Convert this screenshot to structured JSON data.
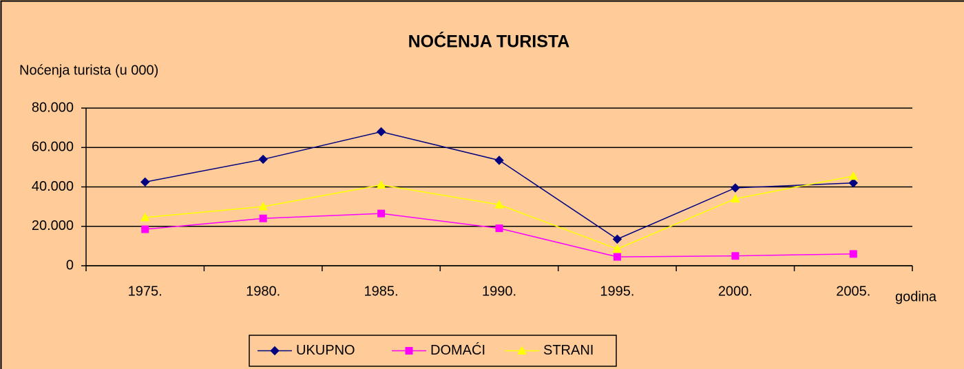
{
  "chart_data": {
    "type": "line",
    "title": "NOĆENJA TURISTA",
    "y_label": "Noćenja turista (u 000)",
    "x_label": "godina",
    "categories": [
      "1975.",
      "1980.",
      "1985.",
      "1990.",
      "1995.",
      "2000.",
      "2005."
    ],
    "series": [
      {
        "name": "UKUPNO",
        "color": "#000080",
        "marker": "diamond",
        "values": [
          42500,
          54000,
          68000,
          53500,
          13500,
          39500,
          42000
        ]
      },
      {
        "name": "DOMAĆI",
        "color": "#ff00ff",
        "marker": "square",
        "values": [
          18500,
          24000,
          26500,
          19000,
          4500,
          5000,
          6000
        ]
      },
      {
        "name": "STRANI",
        "color": "#ffff00",
        "marker": "triangle",
        "values": [
          24500,
          30000,
          41000,
          31000,
          8500,
          34000,
          45500
        ]
      }
    ],
    "ylim": [
      0,
      80000
    ],
    "yticks": [
      0,
      {
        "value": 20000,
        "label": "20.000"
      },
      {
        "value": 40000,
        "label": "40.000"
      },
      {
        "value": 60000,
        "label": "60.000"
      },
      {
        "value": 80000,
        "label": "80.000"
      }
    ],
    "grid": true,
    "legend": "bottom"
  }
}
